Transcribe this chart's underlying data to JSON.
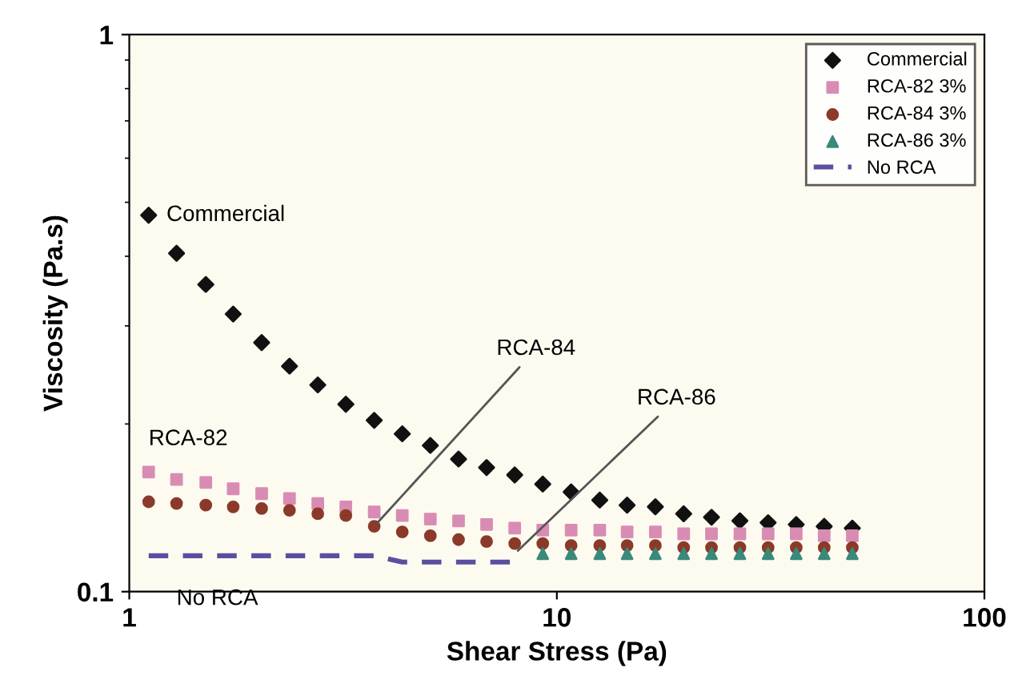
{
  "chart_data": {
    "type": "scatter",
    "xlabel": "Shear Stress (Pa)",
    "ylabel": "Viscosity (Pa.s)",
    "log": "xy",
    "x": [
      1.11,
      1.29,
      1.51,
      1.75,
      2.04,
      2.37,
      2.76,
      3.21,
      3.74,
      4.35,
      5.06,
      5.89,
      6.85,
      7.97,
      9.27,
      10.8,
      12.6,
      14.6,
      17.0,
      19.8,
      23.0,
      26.8,
      31.2,
      36.3,
      42.2,
      49.1
    ],
    "xlim": [
      1,
      100
    ],
    "xticks": [
      1,
      10,
      100
    ],
    "ylim": [
      0.1,
      1
    ],
    "yticks": [
      0.1,
      1
    ],
    "series": [
      {
        "name": "Commercial",
        "color": "#111111",
        "marker": "diamond",
        "values": [
          0.474,
          0.405,
          0.356,
          0.315,
          0.28,
          0.254,
          0.235,
          0.217,
          0.203,
          0.192,
          0.183,
          0.173,
          0.167,
          0.162,
          0.156,
          0.151,
          0.146,
          0.143,
          0.142,
          0.138,
          0.136,
          0.134,
          0.133,
          0.132,
          0.131,
          0.13
        ]
      },
      {
        "name": "RCA-82 3%",
        "color": "#d98cb3",
        "marker": "square",
        "values": [
          0.164,
          0.159,
          0.157,
          0.153,
          0.15,
          0.147,
          0.144,
          0.142,
          0.139,
          0.137,
          0.135,
          0.134,
          0.132,
          0.13,
          0.129,
          0.129,
          0.129,
          0.128,
          0.128,
          0.127,
          0.127,
          0.127,
          0.127,
          0.127,
          0.126,
          0.126
        ]
      },
      {
        "name": "RCA-84 3%",
        "color": "#8b3a2a",
        "marker": "circle",
        "values": [
          0.145,
          0.144,
          0.143,
          0.142,
          0.141,
          0.14,
          0.138,
          0.137,
          0.131,
          0.128,
          0.126,
          0.124,
          0.123,
          0.122,
          0.122,
          0.121,
          0.121,
          0.121,
          0.121,
          0.12,
          0.12,
          0.12,
          0.12,
          0.12,
          0.12,
          0.12
        ]
      },
      {
        "name": "RCA-86 3%",
        "color": "#3a8a7a",
        "marker": "triangle",
        "values": [
          null,
          null,
          null,
          null,
          null,
          null,
          null,
          null,
          null,
          null,
          null,
          null,
          null,
          null,
          0.117,
          0.117,
          0.117,
          0.117,
          0.117,
          0.117,
          0.117,
          0.117,
          0.117,
          0.117,
          0.117,
          0.117
        ]
      },
      {
        "name": "No RCA",
        "color": "#5a4fa0",
        "type": "line",
        "line_style": "dashed",
        "values": [
          0.116,
          0.116,
          0.116,
          0.116,
          0.116,
          0.116,
          0.116,
          0.116,
          0.116,
          0.113,
          0.113,
          0.113,
          0.113,
          0.113,
          null,
          null,
          null,
          null,
          null,
          null,
          null,
          null,
          null,
          null,
          null,
          null
        ]
      }
    ],
    "annotations": [
      {
        "text": "Commercial",
        "x": 1.11,
        "y": 0.474
      },
      {
        "text": "RCA-82",
        "x": 1.11,
        "y": 0.164
      },
      {
        "text": "RCA-84",
        "x": 3.74,
        "y": 0.131
      },
      {
        "text": "RCA-86",
        "x": 7.97,
        "y": 0.117
      },
      {
        "text": "No RCA",
        "x": 1.29,
        "y": 0.113
      }
    ],
    "legend": "top right",
    "grid": false
  }
}
